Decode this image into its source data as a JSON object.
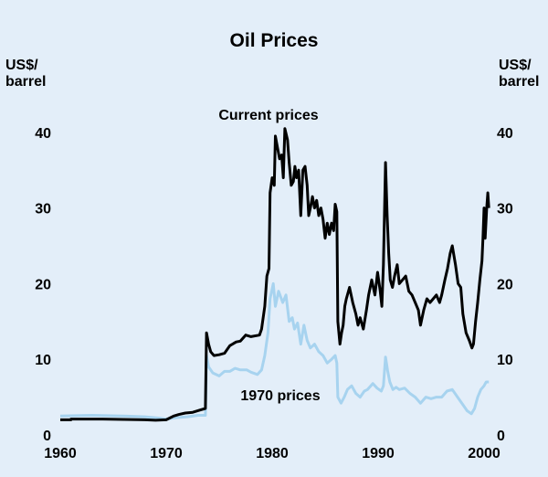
{
  "chart_data": {
    "type": "line",
    "title": "Oil Prices",
    "ylabel_left": [
      "US$/",
      "barrel"
    ],
    "ylabel_right": [
      "US$/",
      "barrel"
    ],
    "xlim": [
      1960,
      2000
    ],
    "ylim": [
      0,
      50
    ],
    "x_ticks": [
      1960,
      1970,
      1980,
      1990,
      2000
    ],
    "y_ticks": [
      0,
      10,
      20,
      30,
      40
    ],
    "colors": {
      "background": "#e3eef9",
      "current": "#000000",
      "real1970": "#a7d3ef"
    },
    "series": [
      {
        "name": "Current prices",
        "label": "Current prices",
        "color": "#000000",
        "points": [
          [
            1960.0,
            2.0
          ],
          [
            1961.0,
            2.0
          ],
          [
            1961.01,
            2.1
          ],
          [
            1964.0,
            2.1
          ],
          [
            1966.0,
            2.05
          ],
          [
            1968.0,
            2.0
          ],
          [
            1969.0,
            1.95
          ],
          [
            1970.0,
            2.0
          ],
          [
            1970.7,
            2.5
          ],
          [
            1971.2,
            2.7
          ],
          [
            1971.8,
            2.9
          ],
          [
            1972.5,
            3.0
          ],
          [
            1973.2,
            3.3
          ],
          [
            1973.7,
            3.5
          ],
          [
            1973.8,
            13.5
          ],
          [
            1974.0,
            12.0
          ],
          [
            1974.2,
            11.0
          ],
          [
            1974.5,
            10.5
          ],
          [
            1975.0,
            10.6
          ],
          [
            1975.5,
            10.8
          ],
          [
            1976.0,
            11.8
          ],
          [
            1976.6,
            12.3
          ],
          [
            1977.0,
            12.4
          ],
          [
            1977.5,
            13.2
          ],
          [
            1978.0,
            13.0
          ],
          [
            1978.8,
            13.2
          ],
          [
            1979.0,
            14.0
          ],
          [
            1979.3,
            17.0
          ],
          [
            1979.5,
            21.0
          ],
          [
            1979.7,
            22.0
          ],
          [
            1979.8,
            32.0
          ],
          [
            1980.0,
            34.0
          ],
          [
            1980.2,
            33.0
          ],
          [
            1980.3,
            39.5
          ],
          [
            1980.5,
            38.0
          ],
          [
            1980.7,
            36.5
          ],
          [
            1980.9,
            37.0
          ],
          [
            1981.05,
            34.0
          ],
          [
            1981.2,
            40.5
          ],
          [
            1981.45,
            39.0
          ],
          [
            1981.6,
            36.0
          ],
          [
            1981.8,
            33.0
          ],
          [
            1982.0,
            33.5
          ],
          [
            1982.15,
            35.5
          ],
          [
            1982.3,
            34.0
          ],
          [
            1982.5,
            35.0
          ],
          [
            1982.7,
            29.0
          ],
          [
            1982.9,
            35.0
          ],
          [
            1983.1,
            35.5
          ],
          [
            1983.3,
            33.0
          ],
          [
            1983.45,
            29.0
          ],
          [
            1983.6,
            30.0
          ],
          [
            1983.8,
            31.5
          ],
          [
            1984.0,
            30.0
          ],
          [
            1984.2,
            31.0
          ],
          [
            1984.4,
            29.0
          ],
          [
            1984.6,
            30.0
          ],
          [
            1984.8,
            28.5
          ],
          [
            1985.0,
            26.0
          ],
          [
            1985.2,
            28.0
          ],
          [
            1985.4,
            26.5
          ],
          [
            1985.6,
            28.0
          ],
          [
            1985.8,
            27.0
          ],
          [
            1985.95,
            30.5
          ],
          [
            1986.1,
            29.5
          ],
          [
            1986.2,
            15.0
          ],
          [
            1986.4,
            12.0
          ],
          [
            1986.55,
            13.5
          ],
          [
            1986.7,
            14.5
          ],
          [
            1986.85,
            17.0
          ],
          [
            1987.0,
            18.0
          ],
          [
            1987.3,
            19.5
          ],
          [
            1987.6,
            17.5
          ],
          [
            1987.9,
            16.0
          ],
          [
            1988.1,
            14.5
          ],
          [
            1988.3,
            15.5
          ],
          [
            1988.6,
            14.0
          ],
          [
            1988.9,
            16.5
          ],
          [
            1989.1,
            18.5
          ],
          [
            1989.4,
            20.5
          ],
          [
            1989.7,
            18.5
          ],
          [
            1989.95,
            21.5
          ],
          [
            1990.2,
            19.0
          ],
          [
            1990.35,
            17.0
          ],
          [
            1990.5,
            22.5
          ],
          [
            1990.7,
            36.0
          ],
          [
            1990.85,
            29.0
          ],
          [
            1991.0,
            24.0
          ],
          [
            1991.15,
            20.5
          ],
          [
            1991.35,
            19.5
          ],
          [
            1991.55,
            21.0
          ],
          [
            1991.8,
            22.5
          ],
          [
            1992.0,
            20.0
          ],
          [
            1992.3,
            20.5
          ],
          [
            1992.6,
            21.0
          ],
          [
            1992.9,
            19.0
          ],
          [
            1993.2,
            18.5
          ],
          [
            1993.5,
            17.5
          ],
          [
            1993.8,
            16.5
          ],
          [
            1994.0,
            14.5
          ],
          [
            1994.3,
            16.5
          ],
          [
            1994.6,
            18.0
          ],
          [
            1994.9,
            17.5
          ],
          [
            1995.2,
            18.0
          ],
          [
            1995.5,
            18.5
          ],
          [
            1995.8,
            17.5
          ],
          [
            1996.0,
            18.5
          ],
          [
            1996.3,
            20.5
          ],
          [
            1996.55,
            22.0
          ],
          [
            1996.8,
            24.0
          ],
          [
            1997.0,
            25.0
          ],
          [
            1997.3,
            22.5
          ],
          [
            1997.55,
            20.0
          ],
          [
            1997.8,
            19.5
          ],
          [
            1998.0,
            16.0
          ],
          [
            1998.3,
            13.5
          ],
          [
            1998.6,
            12.5
          ],
          [
            1998.85,
            11.5
          ],
          [
            1999.0,
            12.0
          ],
          [
            1999.2,
            15.0
          ],
          [
            1999.4,
            17.5
          ],
          [
            1999.6,
            20.5
          ],
          [
            1999.8,
            23.0
          ],
          [
            1999.9,
            26.0
          ],
          [
            2000.0,
            30.0
          ],
          [
            2000.1,
            26.0
          ],
          [
            2000.25,
            30.0
          ],
          [
            2000.35,
            32.0
          ],
          [
            2000.45,
            30.0
          ]
        ]
      },
      {
        "name": "1970 prices",
        "label": "1970 prices",
        "color": "#a7d3ef",
        "points": [
          [
            1960.0,
            2.5
          ],
          [
            1963.0,
            2.6
          ],
          [
            1966.0,
            2.5
          ],
          [
            1968.0,
            2.4
          ],
          [
            1969.5,
            2.2
          ],
          [
            1970.0,
            2.1
          ],
          [
            1971.0,
            2.3
          ],
          [
            1972.0,
            2.4
          ],
          [
            1973.0,
            2.6
          ],
          [
            1973.7,
            2.6
          ],
          [
            1973.8,
            10.5
          ],
          [
            1974.0,
            9.0
          ],
          [
            1974.4,
            8.2
          ],
          [
            1975.0,
            7.8
          ],
          [
            1975.5,
            8.4
          ],
          [
            1976.0,
            8.4
          ],
          [
            1976.5,
            8.8
          ],
          [
            1977.0,
            8.6
          ],
          [
            1977.6,
            8.6
          ],
          [
            1978.0,
            8.3
          ],
          [
            1978.6,
            8.0
          ],
          [
            1979.0,
            8.6
          ],
          [
            1979.3,
            10.5
          ],
          [
            1979.6,
            13.5
          ],
          [
            1979.8,
            18.0
          ],
          [
            1980.1,
            20.0
          ],
          [
            1980.3,
            17.0
          ],
          [
            1980.6,
            19.0
          ],
          [
            1981.0,
            17.5
          ],
          [
            1981.3,
            18.5
          ],
          [
            1981.6,
            15.0
          ],
          [
            1981.9,
            15.5
          ],
          [
            1982.1,
            14.0
          ],
          [
            1982.4,
            14.8
          ],
          [
            1982.7,
            12.0
          ],
          [
            1983.0,
            14.5
          ],
          [
            1983.3,
            12.5
          ],
          [
            1983.6,
            11.5
          ],
          [
            1984.0,
            12.0
          ],
          [
            1984.4,
            11.0
          ],
          [
            1984.8,
            10.5
          ],
          [
            1985.2,
            9.5
          ],
          [
            1985.6,
            10.0
          ],
          [
            1985.95,
            10.5
          ],
          [
            1986.1,
            9.5
          ],
          [
            1986.2,
            5.0
          ],
          [
            1986.5,
            4.2
          ],
          [
            1986.8,
            5.0
          ],
          [
            1987.1,
            6.0
          ],
          [
            1987.5,
            6.5
          ],
          [
            1987.9,
            5.5
          ],
          [
            1988.3,
            5.0
          ],
          [
            1988.7,
            5.8
          ],
          [
            1989.0,
            6.0
          ],
          [
            1989.5,
            6.8
          ],
          [
            1989.9,
            6.2
          ],
          [
            1990.3,
            5.8
          ],
          [
            1990.5,
            6.5
          ],
          [
            1990.7,
            10.3
          ],
          [
            1990.9,
            8.5
          ],
          [
            1991.1,
            7.0
          ],
          [
            1991.4,
            6.0
          ],
          [
            1991.7,
            6.3
          ],
          [
            1992.0,
            6.0
          ],
          [
            1992.5,
            6.2
          ],
          [
            1993.0,
            5.5
          ],
          [
            1993.5,
            5.0
          ],
          [
            1994.0,
            4.2
          ],
          [
            1994.5,
            5.0
          ],
          [
            1995.0,
            4.8
          ],
          [
            1995.5,
            5.0
          ],
          [
            1996.0,
            5.0
          ],
          [
            1996.5,
            5.8
          ],
          [
            1997.0,
            6.0
          ],
          [
            1997.5,
            5.0
          ],
          [
            1998.0,
            4.0
          ],
          [
            1998.4,
            3.2
          ],
          [
            1998.8,
            2.8
          ],
          [
            1999.1,
            3.5
          ],
          [
            1999.4,
            5.0
          ],
          [
            1999.7,
            6.0
          ],
          [
            2000.0,
            6.5
          ],
          [
            2000.2,
            7.0
          ],
          [
            2000.45,
            7.0
          ]
        ]
      }
    ]
  }
}
